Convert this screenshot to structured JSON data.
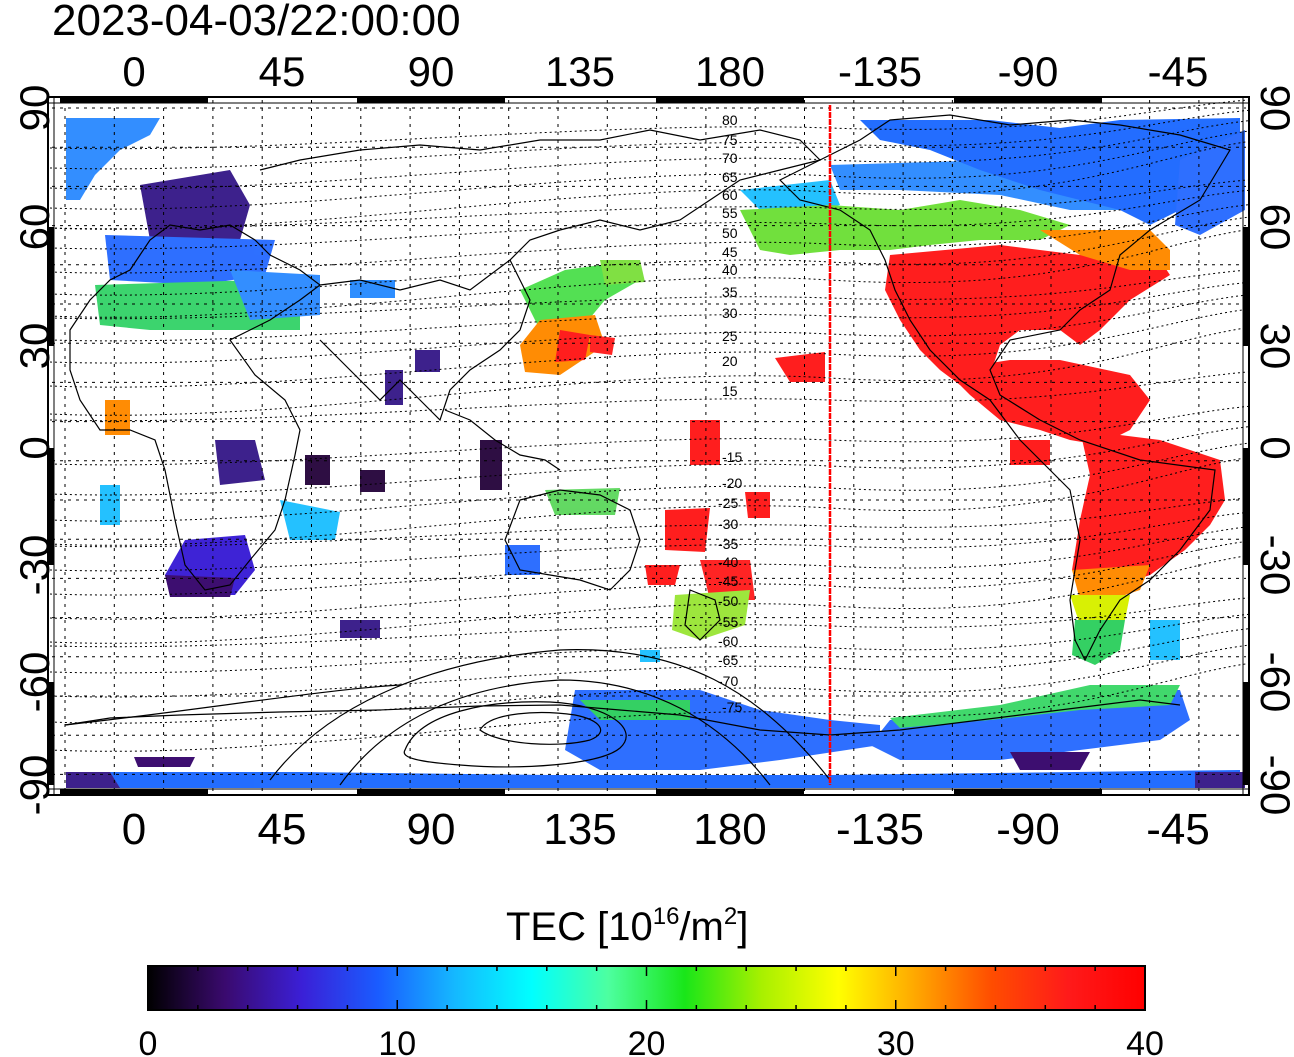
{
  "timestamp": "2023-04-03/22:00:00",
  "map": {
    "top_lon_labels": [
      "0",
      "45",
      "90",
      "135",
      "180",
      "-135",
      "-90",
      "-45"
    ],
    "bottom_lon_labels": [
      "0",
      "45",
      "90",
      "135",
      "180",
      "-135",
      "-90",
      "-45"
    ],
    "left_lat_labels": [
      "90",
      "60",
      "30",
      "0",
      "-30",
      "-60",
      "-90"
    ],
    "right_lat_labels": [
      "90",
      "60",
      "30",
      "0",
      "-30",
      "-60",
      "-90"
    ],
    "magnetic_contour_labels": [
      "80",
      "75",
      "70",
      "65",
      "60",
      "55",
      "50",
      "45",
      "40",
      "35",
      "30",
      "25",
      "20",
      "15",
      "-15",
      "-20",
      "-25",
      "-30",
      "-35",
      "-40",
      "-45",
      "-50",
      "-55",
      "-60",
      "-65",
      "-70",
      "-75"
    ],
    "subsolar_line_color": "#ff0000"
  },
  "colorbar": {
    "title_text": "TEC  [10",
    "title_exponent": "16",
    "title_unit": "/m",
    "title_unit_exponent": "2",
    "title_close": "]",
    "tick_labels": [
      "0",
      "10",
      "20",
      "30",
      "40"
    ],
    "min": 0,
    "max": 40,
    "colors": [
      "#000000",
      "#3a0a6e",
      "#3b1fd6",
      "#1a5cff",
      "#15b8ff",
      "#00ffff",
      "#4dffa0",
      "#19e619",
      "#a8f000",
      "#ffff00",
      "#ffa800",
      "#ff4d00",
      "#ff1a1a",
      "#ff0000"
    ]
  }
}
